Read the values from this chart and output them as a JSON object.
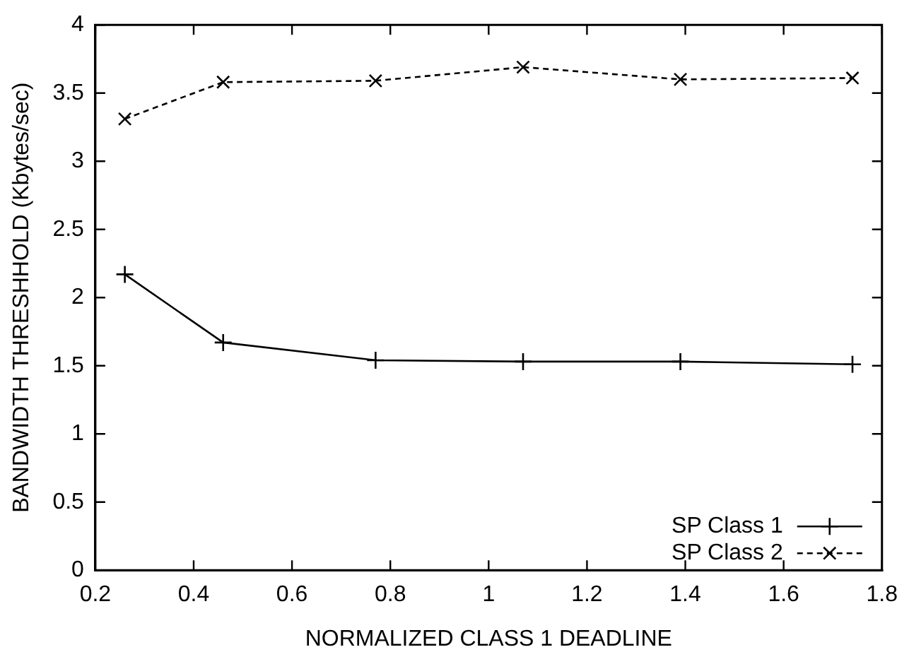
{
  "chart_data": {
    "type": "line",
    "xlabel": "NORMALIZED CLASS 1 DEADLINE",
    "ylabel": "BANDWIDTH THRESHHOLD (Kbytes/sec)",
    "xlim": [
      0.2,
      1.8
    ],
    "xticks": [
      0.2,
      0.4,
      0.6,
      0.8,
      1,
      1.2,
      1.4,
      1.6,
      1.8
    ],
    "ylim": [
      0,
      4
    ],
    "yticks": [
      0,
      0.5,
      1,
      1.5,
      2,
      2.5,
      3,
      3.5,
      4
    ],
    "grid": false,
    "legend": "bottom right",
    "series": [
      {
        "name": "SP Class 1",
        "color": "#000000",
        "marker": "cross",
        "line_style": "solid",
        "x": [
          0.26,
          0.46,
          0.77,
          1.07,
          1.39,
          1.74
        ],
        "values": [
          2.17,
          1.67,
          1.54,
          1.53,
          1.53,
          1.51
        ]
      },
      {
        "name": "SP Class 2",
        "color": "#000000",
        "marker": "x",
        "line_style": "dashed",
        "x": [
          0.26,
          0.46,
          0.77,
          1.07,
          1.39,
          1.74
        ],
        "values": [
          3.31,
          3.58,
          3.59,
          3.69,
          3.6,
          3.61
        ]
      }
    ]
  }
}
